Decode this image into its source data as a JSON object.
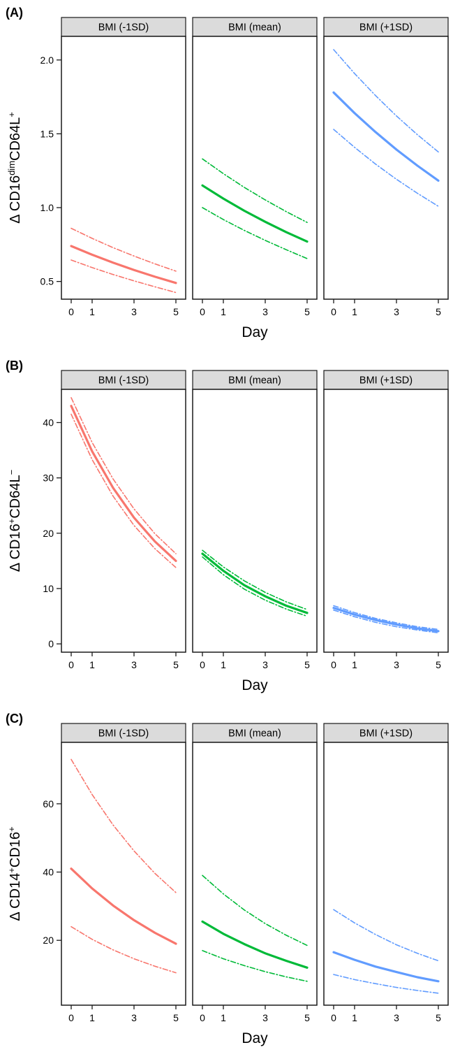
{
  "theme": {
    "strip_bg": "#DBDBDB",
    "border_color": "#1A1A1A",
    "text_color": "#000000",
    "background": "#FFFFFF"
  },
  "chart_data": [
    {
      "type": "line",
      "title": "",
      "panel_label": "(A)",
      "ylabel": "Δ CD16dimCD64L+",
      "ylabel_parts": [
        {
          "t": "Δ CD16",
          "sup": false
        },
        {
          "t": "dim",
          "sup": true
        },
        {
          "t": "CD64L",
          "sup": false
        },
        {
          "t": "+",
          "sup": true
        }
      ],
      "xlabel": "Day",
      "grid": false,
      "legend": "none",
      "x": [
        0,
        1,
        2,
        3,
        4,
        5
      ],
      "xticks": [
        0,
        1,
        3,
        5
      ],
      "xtick_labels": [
        "0",
        "1",
        "3",
        "5"
      ],
      "yticks": [
        0.5,
        1.0,
        1.5,
        2.0
      ],
      "ytick_labels": [
        "0.5",
        "1.0",
        "1.5",
        "2.0"
      ],
      "ylim": [
        0.38,
        2.16
      ],
      "facets": [
        {
          "name": "BMI (-1SD)",
          "color": "#F8766D",
          "series": [
            {
              "name": "fit",
              "style": "solid",
              "values": [
                0.74,
                0.681,
                0.627,
                0.578,
                0.532,
                0.49
              ]
            },
            {
              "name": "upper",
              "style": "dashdot",
              "values": [
                0.86,
                0.792,
                0.729,
                0.672,
                0.619,
                0.57
              ]
            },
            {
              "name": "lower",
              "style": "dashdot",
              "values": [
                0.645,
                0.594,
                0.547,
                0.504,
                0.464,
                0.425
              ]
            }
          ]
        },
        {
          "name": "BMI (mean)",
          "color": "#00BA38",
          "series": [
            {
              "name": "fit",
              "style": "solid",
              "values": [
                1.15,
                1.061,
                0.979,
                0.904,
                0.834,
                0.77
              ]
            },
            {
              "name": "upper",
              "style": "dashdot",
              "values": [
                1.33,
                1.23,
                1.137,
                1.052,
                0.973,
                0.9
              ]
            },
            {
              "name": "lower",
              "style": "dashdot",
              "values": [
                1.0,
                0.919,
                0.846,
                0.778,
                0.715,
                0.655
              ]
            }
          ]
        },
        {
          "name": "BMI (+1SD)",
          "color": "#619CFF",
          "series": [
            {
              "name": "fit",
              "style": "solid",
              "values": [
                1.78,
                1.64,
                1.512,
                1.393,
                1.284,
                1.183
              ]
            },
            {
              "name": "upper",
              "style": "dashdot",
              "values": [
                2.07,
                1.908,
                1.759,
                1.621,
                1.494,
                1.377
              ]
            },
            {
              "name": "lower",
              "style": "dashdot",
              "values": [
                1.53,
                1.408,
                1.295,
                1.192,
                1.097,
                1.009
              ]
            }
          ]
        }
      ]
    },
    {
      "type": "line",
      "title": "",
      "panel_label": "(B)",
      "ylabel": "Δ CD16+CD64L−",
      "ylabel_parts": [
        {
          "t": "Δ CD16",
          "sup": false
        },
        {
          "t": "+",
          "sup": true
        },
        {
          "t": "CD64L",
          "sup": false
        },
        {
          "t": "−",
          "sup": true
        }
      ],
      "xlabel": "Day",
      "grid": false,
      "legend": "none",
      "x": [
        0,
        1,
        2,
        3,
        4,
        5
      ],
      "xticks": [
        0,
        1,
        3,
        5
      ],
      "xtick_labels": [
        "0",
        "1",
        "3",
        "5"
      ],
      "yticks": [
        0,
        10,
        20,
        30,
        40
      ],
      "ytick_labels": [
        "0",
        "10",
        "20",
        "30",
        "40"
      ],
      "ylim": [
        -1.5,
        46
      ],
      "facets": [
        {
          "name": "BMI (-1SD)",
          "color": "#F8766D",
          "series": [
            {
              "name": "fit",
              "style": "solid",
              "values": [
                43.0,
                34.8,
                28.2,
                22.8,
                18.5,
                15.0
              ]
            },
            {
              "name": "upper",
              "style": "dashdot",
              "values": [
                44.5,
                36.4,
                29.8,
                24.4,
                19.9,
                16.3
              ]
            },
            {
              "name": "lower",
              "style": "dashdot",
              "values": [
                41.5,
                33.3,
                26.7,
                21.4,
                17.2,
                13.8
              ]
            }
          ]
        },
        {
          "name": "BMI (mean)",
          "color": "#00BA38",
          "series": [
            {
              "name": "fit",
              "style": "solid",
              "values": [
                16.3,
                13.2,
                10.6,
                8.6,
                6.9,
                5.6
              ]
            },
            {
              "name": "upper",
              "style": "dashdot",
              "values": [
                16.9,
                13.9,
                11.4,
                9.3,
                7.6,
                6.2
              ]
            },
            {
              "name": "lower",
              "style": "dashdot",
              "values": [
                15.7,
                12.5,
                9.9,
                7.9,
                6.3,
                5.0
              ]
            }
          ]
        },
        {
          "name": "BMI (+1SD)",
          "color": "#619CFF",
          "series": [
            {
              "name": "fit",
              "style": "solid",
              "values": [
                6.5,
                5.3,
                4.3,
                3.5,
                2.8,
                2.3
              ]
            },
            {
              "name": "upper",
              "style": "dashdot",
              "values": [
                6.9,
                5.65,
                4.6,
                3.8,
                3.1,
                2.6
              ]
            },
            {
              "name": "lower",
              "style": "dashdot",
              "values": [
                6.1,
                4.9,
                3.9,
                3.1,
                2.5,
                2.0
              ]
            }
          ]
        }
      ]
    },
    {
      "type": "line",
      "title": "",
      "panel_label": "(C)",
      "ylabel": "Δ CD14+CD16+",
      "ylabel_parts": [
        {
          "t": "Δ CD14",
          "sup": false
        },
        {
          "t": "+",
          "sup": true
        },
        {
          "t": "CD16",
          "sup": false
        },
        {
          "t": "+",
          "sup": true
        }
      ],
      "xlabel": "Day",
      "grid": false,
      "legend": "none",
      "x": [
        0,
        1,
        2,
        3,
        4,
        5
      ],
      "xticks": [
        0,
        1,
        3,
        5
      ],
      "xtick_labels": [
        "0",
        "1",
        "3",
        "5"
      ],
      "yticks": [
        20,
        40,
        60
      ],
      "ytick_labels": [
        "20",
        "40",
        "60"
      ],
      "ylim": [
        1,
        78
      ],
      "facets": [
        {
          "name": "BMI (-1SD)",
          "color": "#F8766D",
          "series": [
            {
              "name": "fit",
              "style": "solid",
              "values": [
                41.0,
                35.2,
                30.2,
                25.9,
                22.2,
                19.0
              ]
            },
            {
              "name": "upper",
              "style": "dashdot",
              "values": [
                73.0,
                62.7,
                53.8,
                46.2,
                39.6,
                34.0
              ]
            },
            {
              "name": "lower",
              "style": "dashdot",
              "values": [
                24.0,
                20.3,
                17.2,
                14.6,
                12.4,
                10.5
              ]
            }
          ]
        },
        {
          "name": "BMI (mean)",
          "color": "#00BA38",
          "series": [
            {
              "name": "fit",
              "style": "solid",
              "values": [
                25.5,
                21.9,
                18.9,
                16.2,
                14.0,
                12.0
              ]
            },
            {
              "name": "upper",
              "style": "dashdot",
              "values": [
                39.0,
                33.6,
                28.9,
                24.9,
                21.5,
                18.5
              ]
            },
            {
              "name": "lower",
              "style": "dashdot",
              "values": [
                17.0,
                14.6,
                12.6,
                10.8,
                9.3,
                8.0
              ]
            }
          ]
        },
        {
          "name": "BMI (+1SD)",
          "color": "#619CFF",
          "series": [
            {
              "name": "fit",
              "style": "solid",
              "values": [
                16.5,
                14.3,
                12.3,
                10.7,
                9.2,
                8.0
              ]
            },
            {
              "name": "upper",
              "style": "dashdot",
              "values": [
                29.0,
                25.1,
                21.7,
                18.7,
                16.2,
                14.0
              ]
            },
            {
              "name": "lower",
              "style": "dashdot",
              "values": [
                10.0,
                8.5,
                7.3,
                6.2,
                5.3,
                4.5
              ]
            }
          ]
        }
      ]
    }
  ]
}
